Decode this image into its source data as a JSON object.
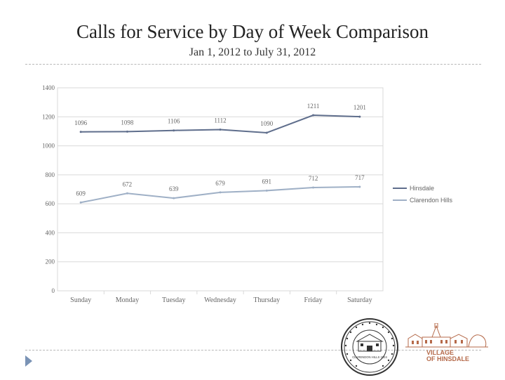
{
  "header": {
    "title": "Calls for Service by Day of Week Comparison",
    "subtitle": "Jan 1, 2012 to July 31, 2012"
  },
  "chart_data": {
    "type": "line",
    "categories": [
      "Sunday",
      "Monday",
      "Tuesday",
      "Wednesday",
      "Thursday",
      "Friday",
      "Saturday"
    ],
    "series": [
      {
        "name": "Hinsdale",
        "values": [
          1096,
          1098,
          1106,
          1112,
          1090,
          1211,
          1201
        ],
        "labels": [
          "1096",
          "1098",
          "1106",
          "1112",
          "1090",
          "1211",
          "1201"
        ],
        "color": "#5f6e8c"
      },
      {
        "name": "Clarendon Hills",
        "values": [
          609,
          672,
          639,
          679,
          691,
          712,
          717
        ],
        "labels": [
          "609",
          "672",
          "639",
          "679",
          "691",
          "712",
          "717"
        ],
        "color": "#9fb0c6"
      }
    ],
    "ylim": [
      0,
      1400
    ],
    "yticks": [
      0,
      200,
      400,
      600,
      800,
      1000,
      1200,
      1400
    ],
    "ytick_labels": [
      "0",
      "200",
      "400",
      "600",
      "800",
      "1000",
      "1200",
      "1400"
    ],
    "grid": true,
    "legend_position": "right"
  },
  "logos": {
    "seal_text": "CLARENDON HILLS 1924",
    "hinsdale_line1": "VILLAGE",
    "hinsdale_line2": "OF HINSDALE"
  },
  "colors": {
    "gridline": "#d9d9d9",
    "axis_text": "#666666",
    "logo": "#b56a4a"
  }
}
